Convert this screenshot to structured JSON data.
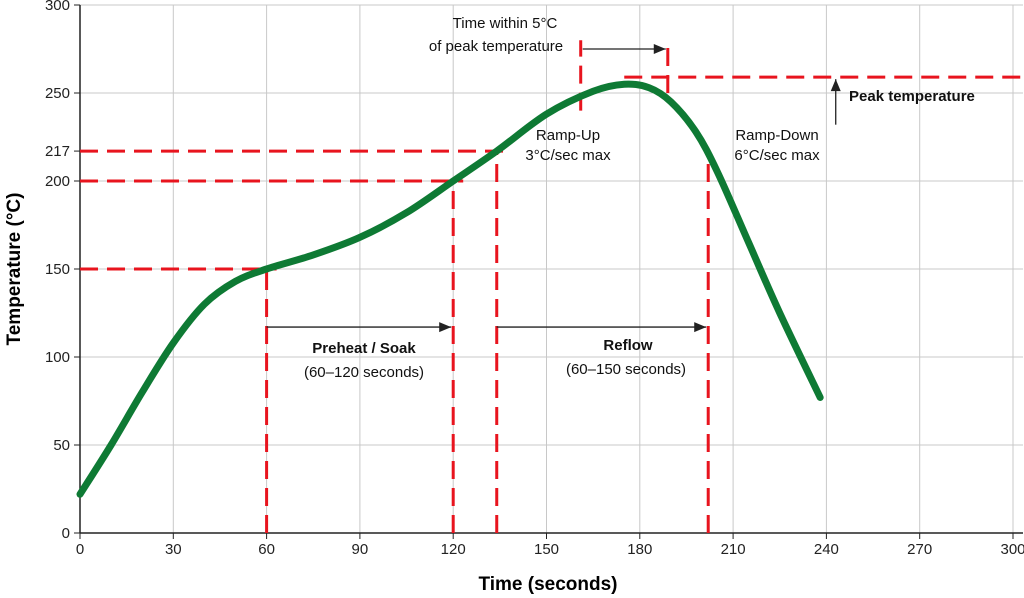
{
  "chart_data": {
    "type": "line",
    "title": "",
    "xlabel": "Time (seconds)",
    "ylabel": "Temperature (°C)",
    "xlim": [
      0,
      300
    ],
    "ylim": [
      0,
      300
    ],
    "xticks": [
      0,
      30,
      60,
      90,
      120,
      150,
      180,
      210,
      240,
      270,
      300
    ],
    "yticks": [
      0,
      50,
      100,
      150,
      200,
      217,
      250,
      300
    ],
    "grid": true,
    "colors": {
      "curve": "#0e7a34",
      "markers": "#e8141e",
      "grid": "#c8c8c8"
    },
    "series": [
      {
        "x": [
          0,
          10,
          20,
          30,
          40,
          50,
          60,
          75,
          90,
          105,
          120,
          134,
          150,
          165,
          175,
          183,
          190,
          198,
          205,
          215,
          225,
          238
        ],
        "y": [
          22,
          50,
          80,
          108,
          130,
          143,
          150,
          158,
          168,
          182,
          200,
          217,
          238,
          251,
          255,
          253,
          245,
          228,
          205,
          165,
          125,
          77
        ]
      }
    ],
    "reference_lines": {
      "horizontal": [
        {
          "y": 150,
          "x": [
            0,
            60
          ]
        },
        {
          "y": 200,
          "x": [
            0,
            120
          ]
        },
        {
          "y": 217,
          "x": [
            0,
            134
          ]
        },
        {
          "y": 259,
          "x": [
            175,
            300
          ]
        }
      ],
      "vertical": [
        {
          "x": 60,
          "y": [
            0,
            150
          ]
        },
        {
          "x": 120,
          "y": [
            0,
            200
          ]
        },
        {
          "x": 134,
          "y": [
            0,
            217
          ]
        },
        {
          "x": 202,
          "y": [
            0,
            217
          ]
        },
        {
          "x": 161,
          "y": [
            240,
            280
          ]
        },
        {
          "x": 189,
          "y": [
            250,
            280
          ]
        }
      ]
    },
    "annotations": {
      "preheat_title": "Preheat / Soak",
      "preheat_range": "(60–120 seconds)",
      "reflow_title": "Reflow",
      "reflow_range": "(60–150 seconds)",
      "ramp_up_1": "Ramp-Up",
      "ramp_up_2": "3°C/sec max",
      "ramp_down_1": "Ramp-Down",
      "ramp_down_2": "6°C/sec max",
      "within_1": "Time within 5°C",
      "within_2": "of peak temperature",
      "peak": "Peak temperature"
    }
  }
}
